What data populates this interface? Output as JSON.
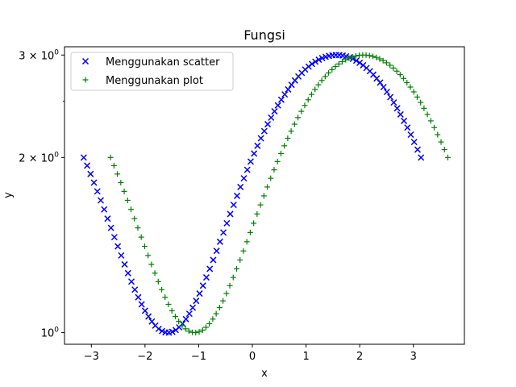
{
  "chart_data": {
    "type": "scatter",
    "title": "Fungsi",
    "xlabel": "x",
    "ylabel": "y",
    "xlim": [
      -3.5,
      3.95
    ],
    "ylim": [
      0.955,
      3.1
    ],
    "yscale": "log",
    "grid": false,
    "legend_placement": "top-left",
    "x_ticks": [
      {
        "value": -3,
        "label": "−3"
      },
      {
        "value": -2,
        "label": "−2"
      },
      {
        "value": -1,
        "label": "−1"
      },
      {
        "value": 0,
        "label": "0"
      },
      {
        "value": 1,
        "label": "1"
      },
      {
        "value": 2,
        "label": "2"
      },
      {
        "value": 3,
        "label": "3"
      }
    ],
    "y_ticks": [
      {
        "value": 1,
        "label": "10",
        "exp": "0"
      },
      {
        "value": 2,
        "label": "2 × 10",
        "exp": "0"
      },
      {
        "value": 3,
        "label": "3 × 10",
        "exp": "0"
      }
    ],
    "series": [
      {
        "name": "Menggunakan scatter",
        "marker": "x",
        "color": "#0000ff",
        "x_range": [
          -3.1416,
          3.1416
        ],
        "num_points": 100,
        "function": "y = sin(x) + 2",
        "x_shift": 0
      },
      {
        "name": "Menggunakan plot",
        "marker": "+",
        "color": "#008000",
        "x_range": [
          -3.1416,
          3.1416
        ],
        "num_points": 100,
        "function": "y = sin(x) + 2",
        "x_shift": 0.5
      }
    ]
  }
}
